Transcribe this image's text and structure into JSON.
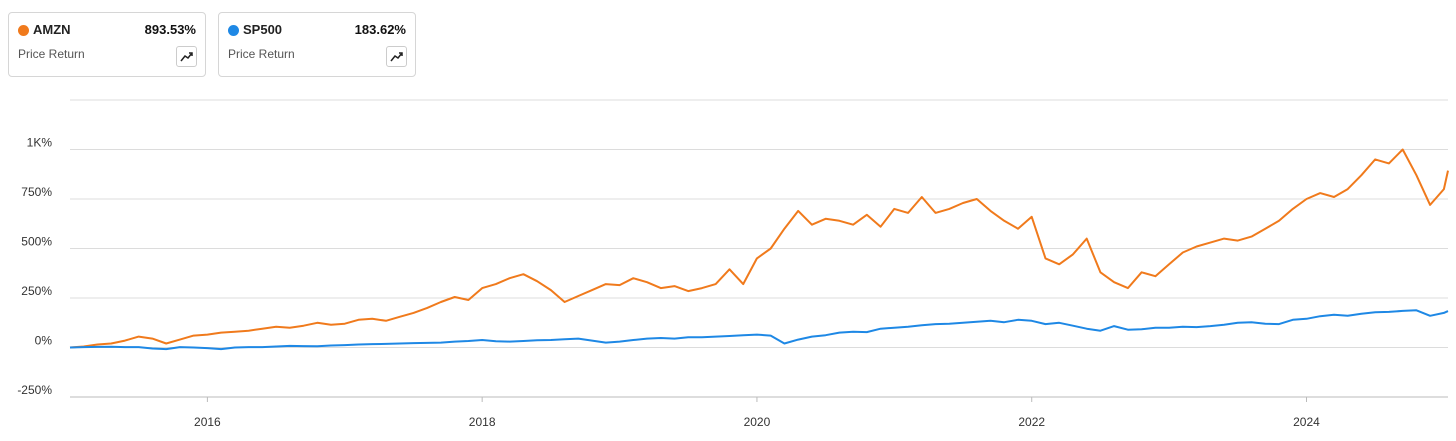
{
  "chart_data": {
    "type": "line",
    "x": [
      2015.0,
      2015.1,
      2015.2,
      2015.3,
      2015.4,
      2015.5,
      2015.6,
      2015.7,
      2015.8,
      2015.9,
      2016.0,
      2016.1,
      2016.2,
      2016.3,
      2016.4,
      2016.5,
      2016.6,
      2016.7,
      2016.8,
      2016.9,
      2017.0,
      2017.1,
      2017.2,
      2017.3,
      2017.4,
      2017.5,
      2017.6,
      2017.7,
      2017.8,
      2017.9,
      2018.0,
      2018.1,
      2018.2,
      2018.3,
      2018.4,
      2018.5,
      2018.6,
      2018.7,
      2018.8,
      2018.9,
      2019.0,
      2019.1,
      2019.2,
      2019.3,
      2019.4,
      2019.5,
      2019.6,
      2019.7,
      2019.8,
      2019.9,
      2020.0,
      2020.1,
      2020.2,
      2020.3,
      2020.4,
      2020.5,
      2020.6,
      2020.7,
      2020.8,
      2020.9,
      2021.0,
      2021.1,
      2021.2,
      2021.3,
      2021.4,
      2021.5,
      2021.6,
      2021.7,
      2021.8,
      2021.9,
      2022.0,
      2022.1,
      2022.2,
      2022.3,
      2022.4,
      2022.5,
      2022.6,
      2022.7,
      2022.8,
      2022.9,
      2023.0,
      2023.1,
      2023.2,
      2023.3,
      2023.4,
      2023.5,
      2023.6,
      2023.7,
      2023.8,
      2023.9,
      2024.0,
      2024.1,
      2024.2,
      2024.3,
      2024.4,
      2024.5,
      2024.6,
      2024.7,
      2024.8,
      2024.9,
      2025.0,
      2025.03
    ],
    "series": [
      {
        "name": "AMZN",
        "color": "#f07a1c",
        "change": "893.53%",
        "subtitle": "Price Return",
        "values": [
          0,
          5,
          15,
          20,
          35,
          55,
          45,
          20,
          40,
          60,
          65,
          75,
          80,
          85,
          95,
          105,
          100,
          110,
          125,
          115,
          120,
          140,
          145,
          135,
          155,
          175,
          200,
          230,
          255,
          240,
          300,
          320,
          350,
          370,
          335,
          290,
          230,
          260,
          290,
          320,
          315,
          350,
          330,
          300,
          310,
          285,
          300,
          320,
          395,
          320,
          450,
          500,
          600,
          690,
          620,
          650,
          640,
          620,
          670,
          610,
          700,
          680,
          760,
          680,
          700,
          730,
          750,
          690,
          640,
          600,
          660,
          450,
          420,
          470,
          550,
          380,
          330,
          300,
          380,
          360,
          420,
          480,
          510,
          530,
          550,
          540,
          560,
          600,
          640,
          700,
          750,
          780,
          760,
          800,
          870,
          950,
          930,
          1000,
          870,
          720,
          800,
          893.53
        ]
      },
      {
        "name": "SP500",
        "color": "#1e88e5",
        "change": "183.62%",
        "subtitle": "Price Return",
        "values": [
          0,
          2,
          3,
          4,
          2,
          2,
          -5,
          -8,
          2,
          0,
          -3,
          -8,
          0,
          2,
          2,
          5,
          8,
          7,
          6,
          10,
          12,
          15,
          17,
          18,
          20,
          22,
          23,
          25,
          30,
          33,
          38,
          32,
          30,
          33,
          37,
          38,
          42,
          45,
          35,
          25,
          30,
          38,
          45,
          48,
          45,
          52,
          52,
          55,
          58,
          62,
          65,
          60,
          20,
          40,
          55,
          62,
          75,
          80,
          78,
          95,
          100,
          105,
          112,
          118,
          120,
          125,
          130,
          135,
          128,
          140,
          135,
          118,
          125,
          110,
          95,
          85,
          108,
          90,
          92,
          100,
          100,
          105,
          103,
          108,
          115,
          125,
          128,
          120,
          118,
          140,
          145,
          158,
          165,
          160,
          170,
          178,
          180,
          185,
          188,
          160,
          175,
          183.62
        ]
      }
    ],
    "xlim": [
      2015,
      2025.03
    ],
    "xticks": [
      2016,
      2018,
      2020,
      2022,
      2024
    ],
    "ylim": [
      -250,
      1250
    ],
    "yticks": [
      {
        "value": -250,
        "label": "-250%"
      },
      {
        "value": 0,
        "label": "0%"
      },
      {
        "value": 250,
        "label": "250%"
      },
      {
        "value": 500,
        "label": "500%"
      },
      {
        "value": 750,
        "label": "750%"
      },
      {
        "value": 1000,
        "label": "1K%"
      }
    ],
    "grid": true
  }
}
